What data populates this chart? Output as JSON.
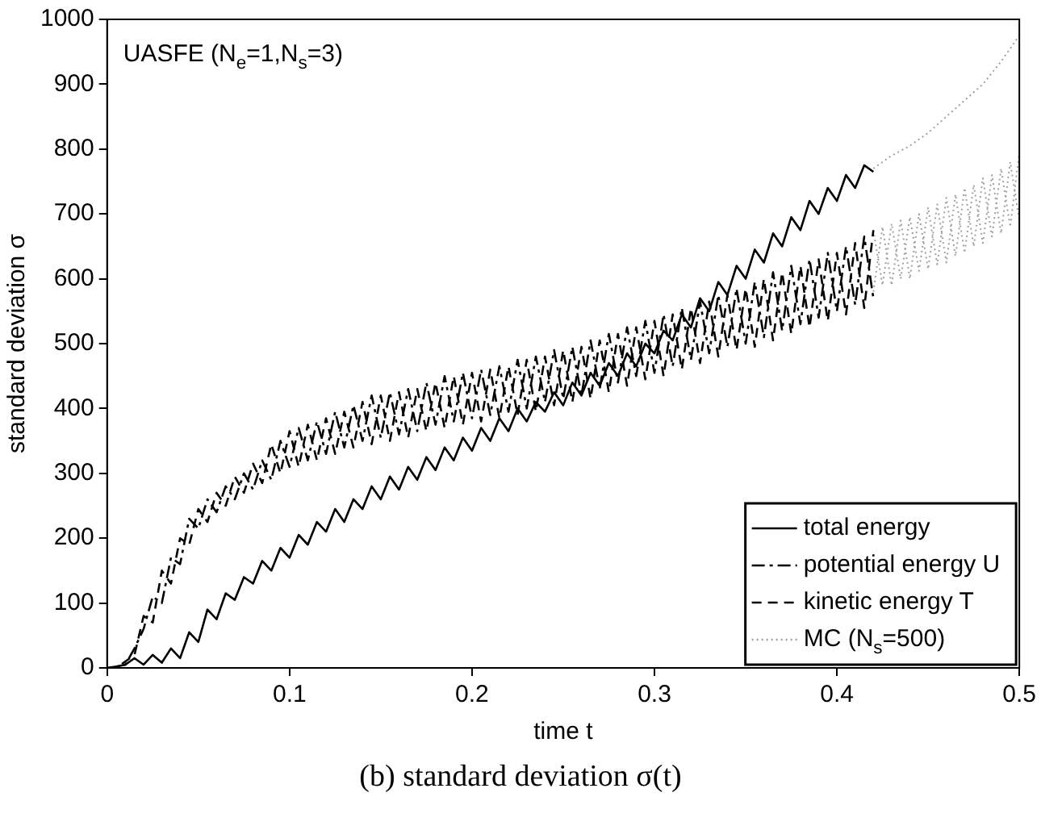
{
  "chart_data": {
    "type": "line",
    "xlabel": "time t",
    "ylabel": "standard deviation σ",
    "xlim": [
      0,
      0.5
    ],
    "xticks": [
      0,
      0.1,
      0.2,
      0.3,
      0.4,
      0.5
    ],
    "ylim": [
      0,
      1000
    ],
    "yticks": [
      0,
      100,
      200,
      300,
      400,
      500,
      600,
      700,
      800,
      900,
      1000
    ],
    "grid": false,
    "legend": "bottom right",
    "marker": "none",
    "annotations": [
      "UASFE (N$_{e}$=1,N$_{s}$=3)",
      "(b) standard deviation σ(t)"
    ],
    "series": [
      {
        "name": "total energy",
        "color": "#000000",
        "line_style": "solid",
        "x": [
          0,
          0.005,
          0.01,
          0.015,
          0.02,
          0.025,
          0.03,
          0.035,
          0.04,
          0.045,
          0.05,
          0.055,
          0.06,
          0.065,
          0.07,
          0.075,
          0.08,
          0.085,
          0.09,
          0.095,
          0.1,
          0.105,
          0.11,
          0.115,
          0.12,
          0.125,
          0.13,
          0.135,
          0.14,
          0.145,
          0.15,
          0.155,
          0.16,
          0.165,
          0.17,
          0.175,
          0.18,
          0.185,
          0.19,
          0.195,
          0.2,
          0.205,
          0.21,
          0.215,
          0.22,
          0.225,
          0.23,
          0.235,
          0.24,
          0.245,
          0.25,
          0.255,
          0.26,
          0.265,
          0.27,
          0.275,
          0.28,
          0.285,
          0.29,
          0.295,
          0.3,
          0.305,
          0.31,
          0.315,
          0.32,
          0.325,
          0.33,
          0.335,
          0.34,
          0.345,
          0.35,
          0.355,
          0.36,
          0.365,
          0.37,
          0.375,
          0.38,
          0.385,
          0.39,
          0.395,
          0.4,
          0.405,
          0.41,
          0.415,
          0.42
        ],
        "values": [
          0,
          2,
          5,
          15,
          5,
          20,
          8,
          30,
          15,
          55,
          40,
          90,
          75,
          115,
          105,
          140,
          130,
          165,
          150,
          185,
          170,
          205,
          190,
          225,
          210,
          245,
          225,
          260,
          245,
          280,
          260,
          295,
          275,
          310,
          290,
          325,
          305,
          340,
          320,
          355,
          335,
          370,
          350,
          385,
          365,
          400,
          380,
          410,
          395,
          425,
          405,
          440,
          420,
          455,
          435,
          470,
          450,
          485,
          465,
          500,
          485,
          520,
          505,
          545,
          525,
          570,
          550,
          595,
          575,
          620,
          600,
          645,
          625,
          670,
          650,
          695,
          675,
          720,
          700,
          740,
          720,
          760,
          740,
          775,
          765
        ]
      },
      {
        "name": "potential energy U",
        "color": "#000000",
        "line_style": "dashdot",
        "x": [
          0,
          0.005,
          0.01,
          0.015,
          0.02,
          0.025,
          0.03,
          0.035,
          0.04,
          0.045,
          0.05,
          0.055,
          0.06,
          0.065,
          0.07,
          0.075,
          0.08,
          0.085,
          0.09,
          0.095,
          0.1,
          0.105,
          0.11,
          0.115,
          0.12,
          0.125,
          0.13,
          0.135,
          0.14,
          0.145,
          0.15,
          0.155,
          0.16,
          0.165,
          0.17,
          0.175,
          0.18,
          0.185,
          0.19,
          0.195,
          0.2,
          0.205,
          0.21,
          0.215,
          0.22,
          0.225,
          0.23,
          0.235,
          0.24,
          0.245,
          0.25,
          0.255,
          0.26,
          0.265,
          0.27,
          0.275,
          0.28,
          0.285,
          0.29,
          0.295,
          0.3,
          0.305,
          0.31,
          0.315,
          0.32,
          0.325,
          0.33,
          0.335,
          0.34,
          0.345,
          0.35,
          0.355,
          0.36,
          0.365,
          0.37,
          0.375,
          0.38,
          0.385,
          0.39,
          0.395,
          0.4,
          0.405,
          0.41,
          0.415,
          0.42
        ],
        "values": [
          0,
          0,
          5,
          30,
          60,
          110,
          100,
          170,
          160,
          230,
          215,
          260,
          240,
          280,
          260,
          300,
          275,
          320,
          290,
          350,
          310,
          370,
          320,
          380,
          330,
          395,
          340,
          405,
          350,
          420,
          355,
          425,
          360,
          430,
          365,
          440,
          375,
          450,
          380,
          455,
          385,
          460,
          390,
          465,
          395,
          475,
          400,
          480,
          410,
          490,
          415,
          495,
          420,
          505,
          430,
          515,
          440,
          525,
          450,
          535,
          455,
          545,
          465,
          555,
          475,
          565,
          485,
          575,
          495,
          585,
          500,
          595,
          510,
          610,
          520,
          620,
          530,
          630,
          540,
          640,
          550,
          650,
          560,
          665,
          570
        ]
      },
      {
        "name": "kinetic energy T",
        "color": "#000000",
        "line_style": "dashed",
        "x": [
          0,
          0.005,
          0.01,
          0.015,
          0.02,
          0.025,
          0.03,
          0.035,
          0.04,
          0.045,
          0.05,
          0.055,
          0.06,
          0.065,
          0.07,
          0.075,
          0.08,
          0.085,
          0.09,
          0.095,
          0.1,
          0.105,
          0.11,
          0.115,
          0.12,
          0.125,
          0.13,
          0.135,
          0.14,
          0.145,
          0.15,
          0.155,
          0.16,
          0.165,
          0.17,
          0.175,
          0.18,
          0.185,
          0.19,
          0.195,
          0.2,
          0.205,
          0.21,
          0.215,
          0.22,
          0.225,
          0.23,
          0.235,
          0.24,
          0.245,
          0.25,
          0.255,
          0.26,
          0.265,
          0.27,
          0.275,
          0.28,
          0.285,
          0.29,
          0.295,
          0.3,
          0.305,
          0.31,
          0.315,
          0.32,
          0.325,
          0.33,
          0.335,
          0.34,
          0.345,
          0.35,
          0.355,
          0.36,
          0.365,
          0.37,
          0.375,
          0.38,
          0.385,
          0.39,
          0.395,
          0.4,
          0.405,
          0.41,
          0.415,
          0.42
        ],
        "values": [
          0,
          0,
          10,
          20,
          80,
          70,
          150,
          130,
          200,
          190,
          245,
          225,
          270,
          250,
          295,
          270,
          315,
          285,
          345,
          300,
          365,
          310,
          375,
          320,
          385,
          330,
          395,
          340,
          410,
          345,
          420,
          350,
          425,
          355,
          430,
          365,
          440,
          370,
          450,
          375,
          455,
          380,
          460,
          385,
          465,
          390,
          475,
          395,
          480,
          405,
          490,
          410,
          495,
          415,
          505,
          425,
          515,
          435,
          525,
          445,
          535,
          450,
          545,
          460,
          555,
          470,
          565,
          480,
          575,
          490,
          585,
          495,
          600,
          505,
          610,
          515,
          620,
          525,
          630,
          535,
          640,
          545,
          655,
          555,
          675
        ]
      },
      {
        "name": "MC (N$_{s}$=500)",
        "color": "#a0a0a0",
        "line_style": "dotted",
        "x": [
          0.42,
          0.43,
          0.44,
          0.45,
          0.46,
          0.47,
          0.48,
          0.49,
          0.5
        ],
        "values": [
          770,
          790,
          805,
          825,
          850,
          875,
          900,
          935,
          975
        ]
      },
      {
        "color": "#a0a0a0",
        "line_style": "dotted",
        "x": [
          0.42,
          0.425,
          0.43,
          0.435,
          0.44,
          0.445,
          0.45,
          0.455,
          0.46,
          0.465,
          0.47,
          0.475,
          0.48,
          0.485,
          0.49,
          0.495,
          0.5
        ],
        "values": [
          580,
          680,
          590,
          690,
          600,
          700,
          615,
          715,
          625,
          730,
          640,
          745,
          655,
          760,
          670,
          780,
          690
        ]
      },
      {
        "color": "#a0a0a0",
        "line_style": "dotted",
        "x": [
          0.42,
          0.425,
          0.43,
          0.435,
          0.44,
          0.445,
          0.45,
          0.455,
          0.46,
          0.465,
          0.47,
          0.475,
          0.48,
          0.485,
          0.49,
          0.495,
          0.5
        ],
        "values": [
          675,
          590,
          685,
          600,
          695,
          612,
          710,
          622,
          725,
          635,
          740,
          650,
          755,
          665,
          770,
          680,
          795
        ]
      }
    ]
  }
}
